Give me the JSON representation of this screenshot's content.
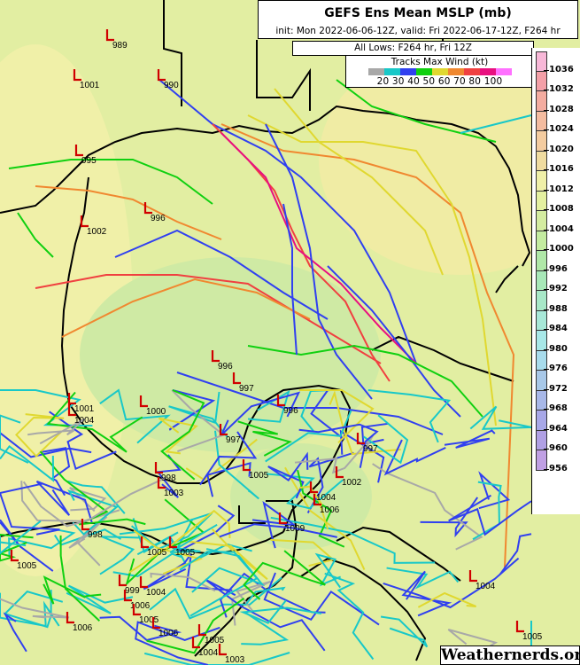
{
  "header": {
    "title": "GEFS Ens Mean MSLP (mb)",
    "subtitle": "init: Mon 2022-06-06-12Z, valid: Fri 2022-06-17-12Z, F264 hr",
    "lows_caption": "All Lows: F264 hr, Fri 12Z"
  },
  "legend": {
    "title": "Tracks Max Wind (kt)",
    "labels": "20 30 40 50 60 70 80 100",
    "colors": [
      "#a8a8a8",
      "#18c8c8",
      "#3040f0",
      "#10d010",
      "#e0d830",
      "#f08830",
      "#f04040",
      "#e81080",
      "#ff70ff"
    ]
  },
  "colorbar": {
    "labels": [
      "1036",
      "1032",
      "1028",
      "1024",
      "1020",
      "1016",
      "1012",
      "1008",
      "1004",
      "1000",
      "996",
      "992",
      "988",
      "984",
      "980",
      "976",
      "972",
      "968",
      "964",
      "960",
      "956"
    ],
    "colors": [
      "#f8b8d8",
      "#f4a0a8",
      "#f4aca0",
      "#f4bca0",
      "#f4cca0",
      "#f0dca0",
      "#f0f0a8",
      "#e4f0a0",
      "#d4eca0",
      "#c4eca0",
      "#b0e8a8",
      "#a8e8b8",
      "#a8e8c8",
      "#a8e8d8",
      "#a8e8e8",
      "#a8dcec",
      "#a8c8e8",
      "#a8b8e8",
      "#a8a8e8",
      "#b0a0e4",
      "#c0a0e4"
    ]
  },
  "lows": [
    "989",
    "1001",
    "990",
    "995",
    "996",
    "1002",
    "996",
    "997",
    "1001",
    "1004",
    "1000",
    "996",
    "997",
    "997",
    "1005",
    "998",
    "1003",
    "998",
    "1005",
    "1005",
    "1005",
    "1009",
    "1004",
    "1006",
    "1002",
    "999",
    "1004",
    "1006",
    "1005",
    "1006",
    "1006",
    "1005",
    "1004",
    "1003",
    "1004",
    "1005"
  ],
  "watermark": "Weathernerds.org"
}
